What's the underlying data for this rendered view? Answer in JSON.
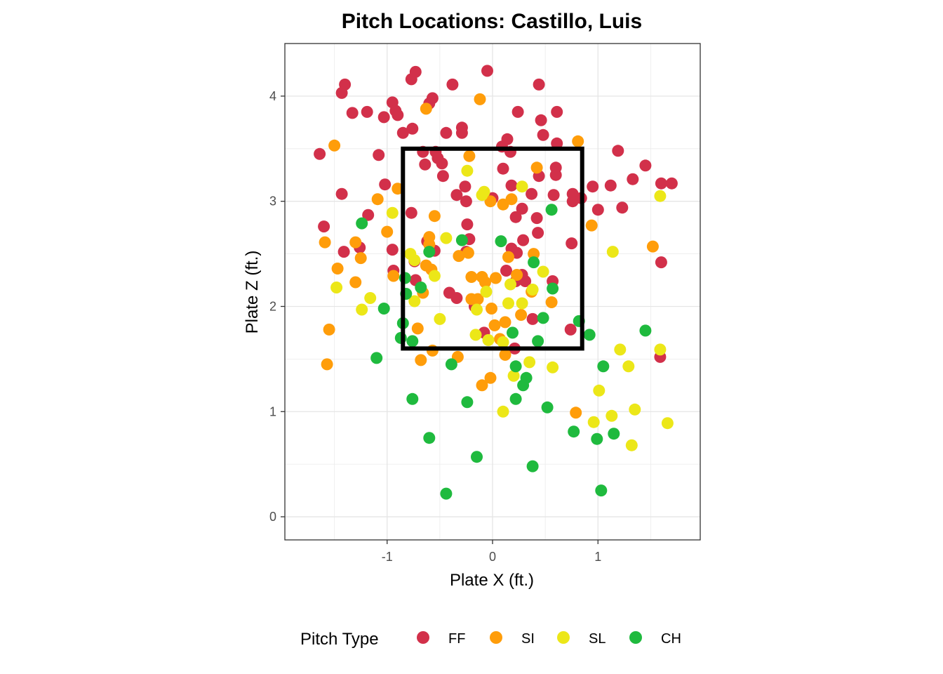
{
  "chart_data": {
    "type": "scatter",
    "title": "Pitch Locations: Castillo, Luis",
    "xlabel": "Plate X (ft.)",
    "ylabel": "Plate Z (ft.)",
    "xlim": [
      -1.97,
      1.97
    ],
    "ylim": [
      -0.22,
      4.5
    ],
    "x_ticks": [
      -1,
      0,
      1
    ],
    "x_tick_labels": [
      "-1",
      "0",
      "1"
    ],
    "y_ticks": [
      0,
      1,
      2,
      3,
      4
    ],
    "y_tick_labels": [
      "0",
      "1",
      "2",
      "3",
      "4"
    ],
    "grid": true,
    "strike_zone": {
      "x": [
        -0.85,
        0.85
      ],
      "z": [
        1.6,
        3.5
      ]
    },
    "legend": {
      "title": "Pitch Type",
      "position": "bottom"
    },
    "series": [
      {
        "name": "FF",
        "color": "#d2304a",
        "points": [
          [
            -0.73,
            4.23
          ],
          [
            -1.4,
            4.11
          ],
          [
            -1.43,
            4.03
          ],
          [
            -0.77,
            4.16
          ],
          [
            -0.05,
            4.24
          ],
          [
            -0.38,
            4.11
          ],
          [
            -0.57,
            3.98
          ],
          [
            -0.6,
            3.93
          ],
          [
            -0.95,
            3.94
          ],
          [
            -1.33,
            3.84
          ],
          [
            -1.19,
            3.85
          ],
          [
            -0.92,
            3.86
          ],
          [
            -1.03,
            3.8
          ],
          [
            -0.9,
            3.82
          ],
          [
            0.44,
            4.11
          ],
          [
            0.24,
            3.85
          ],
          [
            0.61,
            3.85
          ],
          [
            0.46,
            3.77
          ],
          [
            -0.76,
            3.69
          ],
          [
            -0.44,
            3.65
          ],
          [
            -0.29,
            3.65
          ],
          [
            -0.85,
            3.65
          ],
          [
            -0.29,
            3.7
          ],
          [
            0.48,
            3.63
          ],
          [
            0.14,
            3.59
          ],
          [
            0.61,
            3.55
          ],
          [
            -1.64,
            3.45
          ],
          [
            -1.08,
            3.44
          ],
          [
            -0.66,
            3.47
          ],
          [
            -0.54,
            3.47
          ],
          [
            0.09,
            3.52
          ],
          [
            0.17,
            3.47
          ],
          [
            -0.64,
            3.35
          ],
          [
            -0.48,
            3.36
          ],
          [
            -0.52,
            3.41
          ],
          [
            0.1,
            3.31
          ],
          [
            0.6,
            3.32
          ],
          [
            0.6,
            3.25
          ],
          [
            1.19,
            3.48
          ],
          [
            1.45,
            3.34
          ],
          [
            0.44,
            3.24
          ],
          [
            -0.47,
            3.24
          ],
          [
            -1.02,
            3.16
          ],
          [
            -0.26,
            3.14
          ],
          [
            0.18,
            3.15
          ],
          [
            0.95,
            3.14
          ],
          [
            1.12,
            3.15
          ],
          [
            -1.43,
            3.07
          ],
          [
            -0.34,
            3.06
          ],
          [
            0.37,
            3.07
          ],
          [
            0.58,
            3.06
          ],
          [
            0.76,
            3.07
          ],
          [
            1.33,
            3.21
          ],
          [
            1.6,
            3.17
          ],
          [
            1.7,
            3.17
          ],
          [
            -0.25,
            3.0
          ],
          [
            0.0,
            3.03
          ],
          [
            0.76,
            3.0
          ],
          [
            0.84,
            3.03
          ],
          [
            -1.18,
            2.87
          ],
          [
            -0.77,
            2.89
          ],
          [
            0.28,
            2.93
          ],
          [
            0.42,
            2.84
          ],
          [
            0.22,
            2.85
          ],
          [
            1.0,
            2.92
          ],
          [
            1.23,
            2.94
          ],
          [
            -1.6,
            2.76
          ],
          [
            -0.24,
            2.78
          ],
          [
            0.43,
            2.7
          ],
          [
            -0.22,
            2.64
          ],
          [
            -0.62,
            2.62
          ],
          [
            0.29,
            2.63
          ],
          [
            -0.55,
            2.53
          ],
          [
            -0.25,
            2.52
          ],
          [
            0.18,
            2.55
          ],
          [
            0.23,
            2.51
          ],
          [
            0.75,
            2.6
          ],
          [
            -1.41,
            2.52
          ],
          [
            -1.26,
            2.56
          ],
          [
            -0.95,
            2.54
          ],
          [
            -0.74,
            2.43
          ],
          [
            1.6,
            2.42
          ],
          [
            -0.94,
            2.34
          ],
          [
            0.13,
            2.34
          ],
          [
            0.28,
            2.3
          ],
          [
            -0.73,
            2.25
          ],
          [
            0.22,
            2.24
          ],
          [
            0.31,
            2.24
          ],
          [
            0.57,
            2.24
          ],
          [
            -0.41,
            2.13
          ],
          [
            -0.34,
            2.08
          ],
          [
            -0.17,
            2.0
          ],
          [
            0.38,
            1.88
          ],
          [
            0.74,
            1.78
          ],
          [
            -0.08,
            1.75
          ],
          [
            0.21,
            1.6
          ],
          [
            1.59,
            1.52
          ]
        ]
      },
      {
        "name": "SI",
        "color": "#ff9d0a",
        "points": [
          [
            -0.63,
            3.88
          ],
          [
            -0.12,
            3.97
          ],
          [
            -1.5,
            3.53
          ],
          [
            0.81,
            3.57
          ],
          [
            -0.22,
            3.43
          ],
          [
            0.42,
            3.32
          ],
          [
            -0.9,
            3.12
          ],
          [
            0.18,
            3.02
          ],
          [
            -1.09,
            3.02
          ],
          [
            -0.02,
            3.0
          ],
          [
            0.1,
            2.97
          ],
          [
            -0.55,
            2.86
          ],
          [
            0.94,
            2.77
          ],
          [
            -1.0,
            2.71
          ],
          [
            -0.6,
            2.66
          ],
          [
            -1.3,
            2.61
          ],
          [
            -1.59,
            2.61
          ],
          [
            -0.6,
            2.59
          ],
          [
            1.52,
            2.57
          ],
          [
            -0.23,
            2.51
          ],
          [
            -0.32,
            2.48
          ],
          [
            0.15,
            2.47
          ],
          [
            0.39,
            2.5
          ],
          [
            -1.25,
            2.46
          ],
          [
            -0.63,
            2.39
          ],
          [
            -1.47,
            2.36
          ],
          [
            -0.58,
            2.35
          ],
          [
            -0.2,
            2.28
          ],
          [
            -0.1,
            2.28
          ],
          [
            0.03,
            2.27
          ],
          [
            -0.07,
            2.23
          ],
          [
            0.23,
            2.3
          ],
          [
            -0.94,
            2.29
          ],
          [
            -1.3,
            2.23
          ],
          [
            -0.66,
            2.13
          ],
          [
            -0.2,
            2.07
          ],
          [
            -0.14,
            2.07
          ],
          [
            0.37,
            2.14
          ],
          [
            0.56,
            2.04
          ],
          [
            -0.01,
            1.98
          ],
          [
            0.12,
            1.85
          ],
          [
            0.02,
            1.82
          ],
          [
            0.27,
            1.92
          ],
          [
            -0.71,
            1.79
          ],
          [
            -1.55,
            1.78
          ],
          [
            0.07,
            1.69
          ],
          [
            -0.57,
            1.58
          ],
          [
            0.12,
            1.54
          ],
          [
            -0.33,
            1.52
          ],
          [
            -0.68,
            1.49
          ],
          [
            -1.57,
            1.45
          ],
          [
            -0.1,
            1.25
          ],
          [
            -0.02,
            1.32
          ],
          [
            0.79,
            0.99
          ]
        ]
      },
      {
        "name": "SL",
        "color": "#ece718",
        "points": [
          [
            -0.24,
            3.29
          ],
          [
            -0.08,
            3.09
          ],
          [
            -0.1,
            3.06
          ],
          [
            0.28,
            3.14
          ],
          [
            -0.95,
            2.89
          ],
          [
            1.59,
            3.05
          ],
          [
            -0.44,
            2.65
          ],
          [
            -0.78,
            2.5
          ],
          [
            -0.74,
            2.44
          ],
          [
            -0.55,
            2.29
          ],
          [
            0.48,
            2.33
          ],
          [
            0.17,
            2.21
          ],
          [
            1.14,
            2.52
          ],
          [
            -1.48,
            2.18
          ],
          [
            -0.06,
            2.14
          ],
          [
            0.38,
            2.16
          ],
          [
            -1.16,
            2.08
          ],
          [
            -0.74,
            2.05
          ],
          [
            0.15,
            2.03
          ],
          [
            0.28,
            2.03
          ],
          [
            -1.24,
            1.97
          ],
          [
            -0.5,
            1.88
          ],
          [
            -0.15,
            1.97
          ],
          [
            -0.16,
            1.73
          ],
          [
            -0.04,
            1.68
          ],
          [
            0.1,
            1.66
          ],
          [
            1.21,
            1.59
          ],
          [
            1.59,
            1.59
          ],
          [
            0.35,
            1.47
          ],
          [
            0.57,
            1.42
          ],
          [
            1.29,
            1.43
          ],
          [
            0.2,
            1.34
          ],
          [
            1.01,
            1.2
          ],
          [
            0.1,
            1.0
          ],
          [
            1.35,
            1.02
          ],
          [
            1.13,
            0.96
          ],
          [
            0.96,
            0.9
          ],
          [
            1.66,
            0.89
          ],
          [
            1.32,
            0.68
          ]
        ]
      },
      {
        "name": "CH",
        "color": "#1fba3e",
        "points": [
          [
            -1.24,
            2.79
          ],
          [
            0.56,
            2.92
          ],
          [
            -0.29,
            2.63
          ],
          [
            0.08,
            2.62
          ],
          [
            -0.6,
            2.52
          ],
          [
            0.39,
            2.42
          ],
          [
            -0.83,
            2.27
          ],
          [
            -0.68,
            2.18
          ],
          [
            0.57,
            2.17
          ],
          [
            -0.82,
            2.12
          ],
          [
            -1.03,
            1.98
          ],
          [
            0.48,
            1.89
          ],
          [
            -0.85,
            1.84
          ],
          [
            0.82,
            1.86
          ],
          [
            0.19,
            1.75
          ],
          [
            0.92,
            1.73
          ],
          [
            1.45,
            1.77
          ],
          [
            -0.87,
            1.7
          ],
          [
            -0.76,
            1.67
          ],
          [
            0.43,
            1.67
          ],
          [
            -1.1,
            1.51
          ],
          [
            -0.39,
            1.45
          ],
          [
            0.22,
            1.43
          ],
          [
            1.05,
            1.43
          ],
          [
            0.32,
            1.32
          ],
          [
            0.29,
            1.25
          ],
          [
            -0.76,
            1.12
          ],
          [
            0.22,
            1.12
          ],
          [
            -0.24,
            1.09
          ],
          [
            0.52,
            1.04
          ],
          [
            0.77,
            0.81
          ],
          [
            1.15,
            0.79
          ],
          [
            0.99,
            0.74
          ],
          [
            -0.6,
            0.75
          ],
          [
            -0.15,
            0.57
          ],
          [
            0.38,
            0.48
          ],
          [
            1.03,
            0.25
          ],
          [
            -0.44,
            0.22
          ]
        ]
      }
    ]
  }
}
